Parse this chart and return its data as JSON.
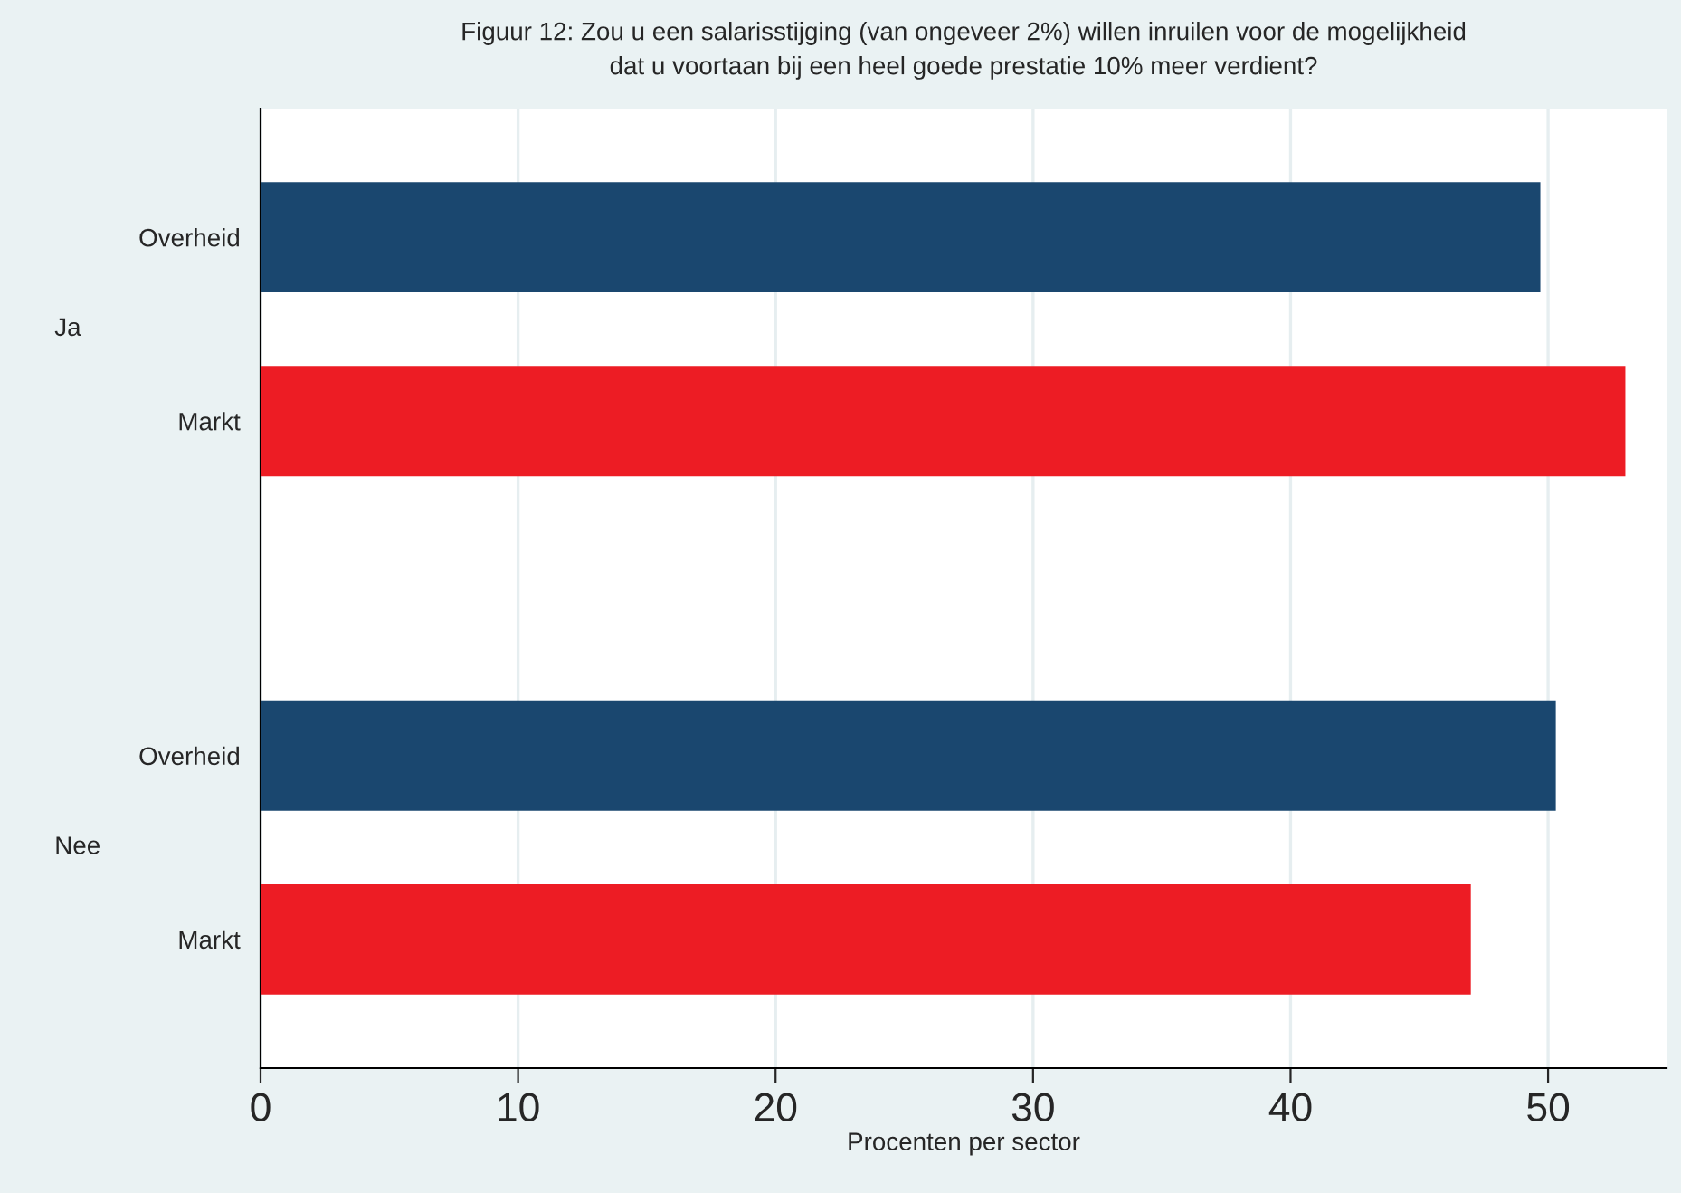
{
  "chart_data": {
    "type": "bar",
    "orientation": "horizontal",
    "title": "Figuur 12: Zou u een salarisstijging (van ongeveer 2%) willen inruilen voor de mogelijkheid\ndat u voortaan bij een heel goede prestatie 10% meer verdient?",
    "xlabel": "Procenten per sector",
    "categories": [
      "Ja",
      "Nee"
    ],
    "series": [
      {
        "name": "Overheid",
        "color": "#1a476f",
        "values": [
          49.7,
          50.3
        ]
      },
      {
        "name": "Markt",
        "color": "#ed1c24",
        "values": [
          53.0,
          47.0
        ]
      }
    ],
    "xlim": [
      0,
      54.6
    ],
    "xticks": [
      0,
      10,
      20,
      30,
      40,
      50
    ],
    "grid": "x",
    "legend": false
  }
}
